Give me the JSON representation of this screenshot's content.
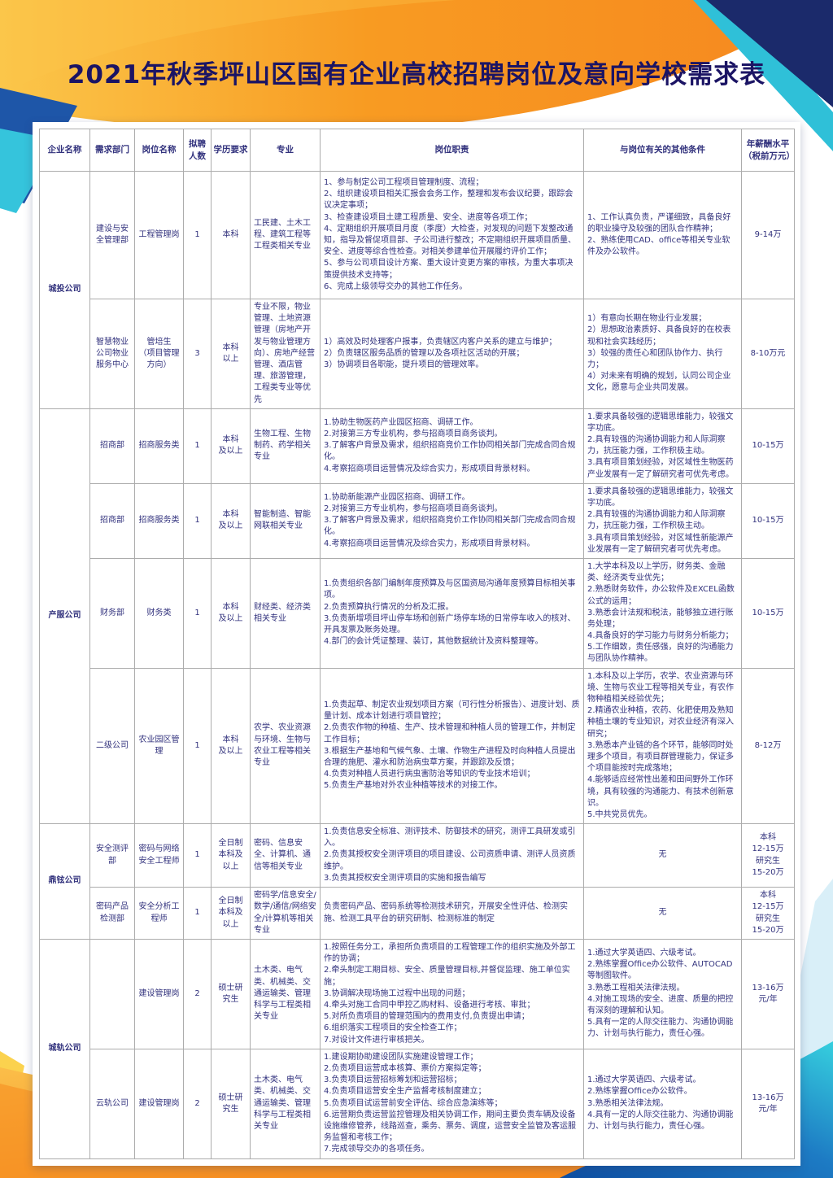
{
  "title": "2021年秋季坪山区国有企业高校招聘岗位及意向学校需求表",
  "colors": {
    "title_text": "#1B1464",
    "table_text": "#32327D",
    "table_border": "#ACACAC",
    "banner_orange": "#F7941D",
    "banner_yellow": "#FBC64A",
    "corner_navy": "#1B2A6B",
    "corner_cyan": "#33CBDC",
    "bottom_blue": "#1356A6"
  },
  "table": {
    "headers": [
      "企业名称",
      "需求部门",
      "岗位名称",
      "拟聘人数",
      "学历要求",
      "专业",
      "岗位职责",
      "与岗位有关的其他条件",
      "年薪酬水平\n（税前万元）"
    ],
    "groups": [
      {
        "company": "城投公司",
        "rows": [
          {
            "department": "建设与安全管理部",
            "position": "工程管理岗",
            "count": "1",
            "education": "本科",
            "major": "工民建、土木工程、建筑工程等工程类相关专业",
            "duties": "1、参与制定公司工程项目管理制度、流程；\n2、组织建设项目相关汇报会会务工作，整理和发布会议纪要，跟踪会议决定事项；\n3、检查建设项目土建工程质量、安全、进度等各项工作；\n4、定期组织开展项目月度（季度）大检查，对发现的问题下发整改通知，指导及督促项目部、子公司进行整改；不定期组织开展项目质量、安全、进度等综合性检查。对相关参建单位开展履约评价工作；\n5、参与公司项目设计方案、重大设计变更方案的审核，为重大事项决策提供技术支持等；\n6、完成上级领导交办的其他工作任务。",
            "conditions": "1、工作认真负责，严谨细致，具备良好的职业操守及较强的团队合作精神；\n2、熟练使用CAD、office等相关专业软件及办公软件。",
            "salary": "9-14万"
          },
          {
            "department": "智慧物业公司物业服务中心",
            "position": "管培生\n（项目管理方向）",
            "count": "3",
            "education": "本科\n以上",
            "major": "专业不限，物业管理、土地资源管理（房地产开发与物业管理方向）、房地产经营管理、酒店管理、旅游管理，工程类专业等优先",
            "duties": "1）高效及时处理客户报事，负责辖区内客户关系的建立与维护；\n2）负责辖区服务品质的管理以及各项社区活动的开展；\n3）协调项目各职能，提升项目的管理效率。",
            "conditions": "1）有意向长期在物业行业发展；\n2）思想政治素质好、具备良好的在校表现和社会实践经历；\n3）较强的责任心和团队协作力、执行力；\n4）对未来有明确的规划，认同公司企业文化，愿意与企业共同发展。",
            "salary": "8-10万元"
          }
        ]
      },
      {
        "company": "产服公司",
        "rows": [
          {
            "department": "招商部",
            "position": "招商服务类",
            "count": "1",
            "education": "本科\n及以上",
            "major": "生物工程、生物制药、药学相关专业",
            "duties": "1.协助生物医药产业园区招商、调研工作。\n2.对接第三方专业机构，参与招商项目商务谈判。\n3.了解客户背景及需求，组织招商竞价工作协同相关部门完成合同合规化。\n4.考察招商项目运营情况及综合实力，形成项目背景材料。",
            "conditions": "1.要求具备较强的逻辑思维能力，较强文字功底。\n2.具有较强的沟通协调能力和人际洞察力，抗压能力强，工作积极主动。\n3.具有项目策划经验，对区域性生物医药产业发展有一定了解研究者可优先考虑。",
            "salary": "10-15万"
          },
          {
            "department": "招商部",
            "position": "招商服务类",
            "count": "1",
            "education": "本科\n及以上",
            "major": "智能制造、智能网联相关专业",
            "duties": "1.协助新能源产业园区招商、调研工作。\n2.对接第三方专业机构，参与招商项目商务谈判。\n3.了解客户背景及需求，组织招商竞价工作协同相关部门完成合同合规化。\n4.考察招商项目运营情况及综合实力，形成项目背景材料。",
            "conditions": "1.要求具备较强的逻辑思维能力，较强文字功底。\n2.具有较强的沟通协调能力和人际洞察力，抗压能力强，工作积极主动。\n3.具有项目策划经验，对区域性新能源产业发展有一定了解研究者可优先考虑。",
            "salary": "10-15万"
          },
          {
            "department": "财务部",
            "position": "财务类",
            "count": "1",
            "education": "本科\n及以上",
            "major": "财经类、经济类相关专业",
            "duties": "1.负责组织各部门编制年度预算及与区国资局沟通年度预算目标相关事项。\n2.负责预算执行情况的分析及汇报。\n3.负责新增项目坪山停车场和创新广场停车场的日常停车收入的核对、开具发票及账务处理。\n4.部门的会计凭证整理、装订，其他数据统计及资料整理等。",
            "conditions": "1.大学本科及以上学历，财务类、金融类、经济类专业优先；\n2.熟悉财务软件，办公软件及EXCEL函数公式的运用；\n3.熟悉会计法规和税法，能够独立进行账务处理；\n4.具备良好的学习能力与财务分析能力；\n5.工作细致，责任感强，良好的沟通能力与团队协作精神。",
            "salary": "10-15万"
          },
          {
            "department": "二级公司",
            "position": "农业园区管理",
            "count": "1",
            "education": "本科\n及以上",
            "major": "农学、农业资源与环境、生物与农业工程等相关专业",
            "duties": "1.负责起草、制定农业规划项目方案（可行性分析报告）、进度计划、质量计划、成本计划进行项目管控；\n2.负责农作物的种植、生产、技术管理和种植人员的管理工作，并制定工作目标；\n3.根据生产基地和气候气象、土壤、作物生产进程及时向种植人员提出合理的施肥、灌水和防治病虫草方案，并跟踪及反馈；\n4.负责对种植人员进行病虫害防治等知识的专业技术培训；\n5.负责生产基地对外农业种植等技术的对接工作。",
            "conditions": "1.本科及以上学历，农学、农业资源与环境、生物与农业工程等相关专业，有农作物种植相关经验优先；\n2.精通农业种植，农药、化肥使用及熟知种植土壤的专业知识，对农业经济有深入研究；\n3.熟悉本产业链的各个环节，能够同时处理多个项目，有项目群管理能力，保证多个项目能按时完成落地；\n4.能够适应经常性出差和田间野外工作环境，具有较强的沟通能力、有技术创新意识。\n5.中共党员优先。",
            "salary": "8-12万"
          }
        ]
      },
      {
        "company": "鼎铉公司",
        "rows": [
          {
            "department": "安全测评部",
            "position": "密码与网络安全工程师",
            "count": "1",
            "education": "全日制\n本科及\n以上",
            "major": "密码、信息安全、计算机、通信等相关专业",
            "duties": "1.负责信息安全标准、测评技术、防御技术的研究，测评工具研发或引入。\n2.负责其授权安全测评项目的项目建设、公司资质申请、测评人员资质维护。\n3.负责其授权安全测评项目的实施和报告编写",
            "conditions": "无",
            "salary": "本科\n12-15万\n研究生\n15-20万"
          },
          {
            "department": "密码产品检测部",
            "position": "安全分析工程师",
            "count": "1",
            "education": "全日制\n本科及\n以上",
            "major": "密码学/信息安全/数学/通信/网络安全/计算机等相关专业",
            "duties": "负责密码产品、密码系统等检测技术研究，开展安全性评估、检测实施、检测工具平台的研究研制、检测标准的制定",
            "conditions": "无",
            "salary": "本科\n12-15万\n研究生\n15-20万"
          }
        ]
      },
      {
        "company": "城轨公司",
        "rows": [
          {
            "department": "",
            "position": "建设管理岗",
            "count": "2",
            "education": "硕士研\n究生",
            "major": "土木类、电气类、机械类、交通运输类、管理科学与工程类相关专业",
            "duties": "1.按照任务分工，承担所负责项目的工程管理工作的组织实施及外部工作的协调；\n2.牵头制定工期目标、安全、质量管理目标,并督促监理、施工单位实施；\n3.协调解决现场施工过程中出现的问题；\n4.牵头对施工合同中甲控乙购材料、设备进行考核、审批；\n5.对所负责项目的管理范围内的费用支付,负责提出申请；\n6.组织落实工程项目的安全检查工作；\n7.对设计文件进行审核把关。",
            "conditions": "1.通过大学英语四、六级考试。\n2.熟练掌握Office办公软件、AUTOCAD等制图软件。\n3.熟悉工程相关法律法规。\n4.对施工现场的安全、进度、质量的把控有深刻的理解和认知。\n5.具有一定的人际交往能力、沟通协调能力、计划与执行能力，责任心强。",
            "salary": "13-16万\n元/年"
          },
          {
            "department": "云轨公司",
            "position": "建设管理岗",
            "count": "2",
            "education": "硕士研\n究生",
            "major": "土木类、电气类、机械类、交通运输类、管理科学与工程类相关专业",
            "duties": "1.建设期协助建设团队实施建设管理工作；\n2.负责项目运营成本核算、票价方案拟定等；\n3.负责项目运营招标筹划和运营招标；\n4.负责项目运营安全生产监督考核制度建立；\n5.负责项目试运营前安全评估、综合应急演练等；\n6.运营期负责运营监控管理及相关协调工作，期间主要负责车辆及设备设施维修管养，线路巡查，乘务、票务、调度，运营安全监管及客运服务监督和考核工作；\n7.完成领导交办的各项任务。",
            "conditions": "1.通过大学英语四、六级考试。\n2.熟练掌握Office办公软件。\n3.熟悉相关法律法规。\n4.具有一定的人际交往能力、沟通协调能力、计划与执行能力，责任心强。",
            "salary": "13-16万\n元/年"
          }
        ]
      }
    ]
  }
}
